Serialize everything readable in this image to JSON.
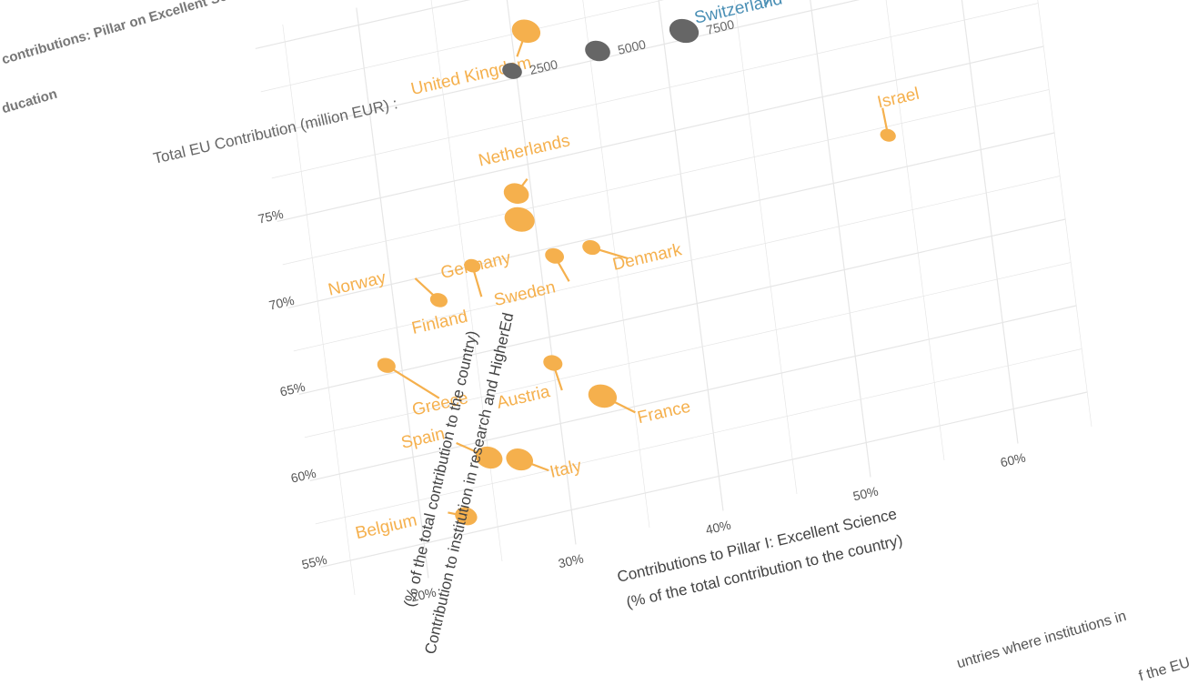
{
  "page": {
    "title_line1": "contributions: Pillar on Excellent Science versus",
    "title_line2": "ducation",
    "footer_line1": "untries where institutions in",
    "footer_line2": "f the EU"
  },
  "legend": {
    "title": "Total EU Contribution (million EUR) :",
    "sizes": [
      2500,
      5000,
      7500
    ],
    "size_labels": [
      "2500",
      "5000",
      "7500"
    ]
  },
  "colors": {
    "eu": "#f5b04d",
    "non_eu": "#4a8fb5",
    "grid": "#e6e6e6",
    "axis_text": "#555555"
  },
  "chart_data": {
    "type": "scatter",
    "xlabel_line1": "Contributions to Pillar I: Excellent Science",
    "xlabel_line2": "(% of the total contribution to the country)",
    "ylabel_line1": "Contribution to institution in research and HigherEd",
    "ylabel_line2": "(% of the total contribution to the country)",
    "xlim": [
      15,
      65
    ],
    "ylim": [
      53,
      80
    ],
    "x_ticks": [
      20,
      30,
      40,
      50,
      60
    ],
    "x_tick_labels": [
      "20%",
      "30%",
      "40%",
      "50%",
      "60%"
    ],
    "y_ticks": [
      55,
      60,
      65,
      70,
      75
    ],
    "y_tick_labels": [
      "55%",
      "60%",
      "65%",
      "70%",
      "75%"
    ],
    "points": [
      {
        "country": "United Kingdom",
        "x": 31,
        "y": 82.5,
        "size": 7000,
        "group": "eu"
      },
      {
        "country": "Switzerland",
        "x": 48,
        "y": 82,
        "size": 2200,
        "group": "non_eu"
      },
      {
        "country": "Netherlands",
        "x": 29,
        "y": 73.5,
        "size": 5000,
        "group": "eu"
      },
      {
        "country": "Germany",
        "x": 29,
        "y": 72,
        "size": 8000,
        "group": "eu"
      },
      {
        "country": "Israel",
        "x": 54,
        "y": 72,
        "size": 1200,
        "group": "non_eu_eu_color"
      },
      {
        "country": "Norway",
        "x": 23,
        "y": 68.5,
        "size": 1700,
        "group": "eu"
      },
      {
        "country": "Finland",
        "x": 25.5,
        "y": 70,
        "size": 1400,
        "group": "eu"
      },
      {
        "country": "Sweden",
        "x": 31,
        "y": 69.5,
        "size": 2200,
        "group": "eu"
      },
      {
        "country": "Denmark",
        "x": 33.5,
        "y": 69.5,
        "size": 1900,
        "group": "eu"
      },
      {
        "country": "Greece",
        "x": 19,
        "y": 65.5,
        "size": 2000,
        "group": "eu"
      },
      {
        "country": "Austria",
        "x": 30,
        "y": 63.5,
        "size": 2300,
        "group": "eu"
      },
      {
        "country": "France",
        "x": 33,
        "y": 61,
        "size": 7000,
        "group": "eu"
      },
      {
        "country": "Spain",
        "x": 25,
        "y": 59,
        "size": 6000,
        "group": "eu"
      },
      {
        "country": "Italy",
        "x": 27,
        "y": 58.5,
        "size": 6000,
        "group": "eu"
      },
      {
        "country": "Belgium",
        "x": 23,
        "y": 56,
        "size": 3500,
        "group": "eu"
      }
    ]
  }
}
